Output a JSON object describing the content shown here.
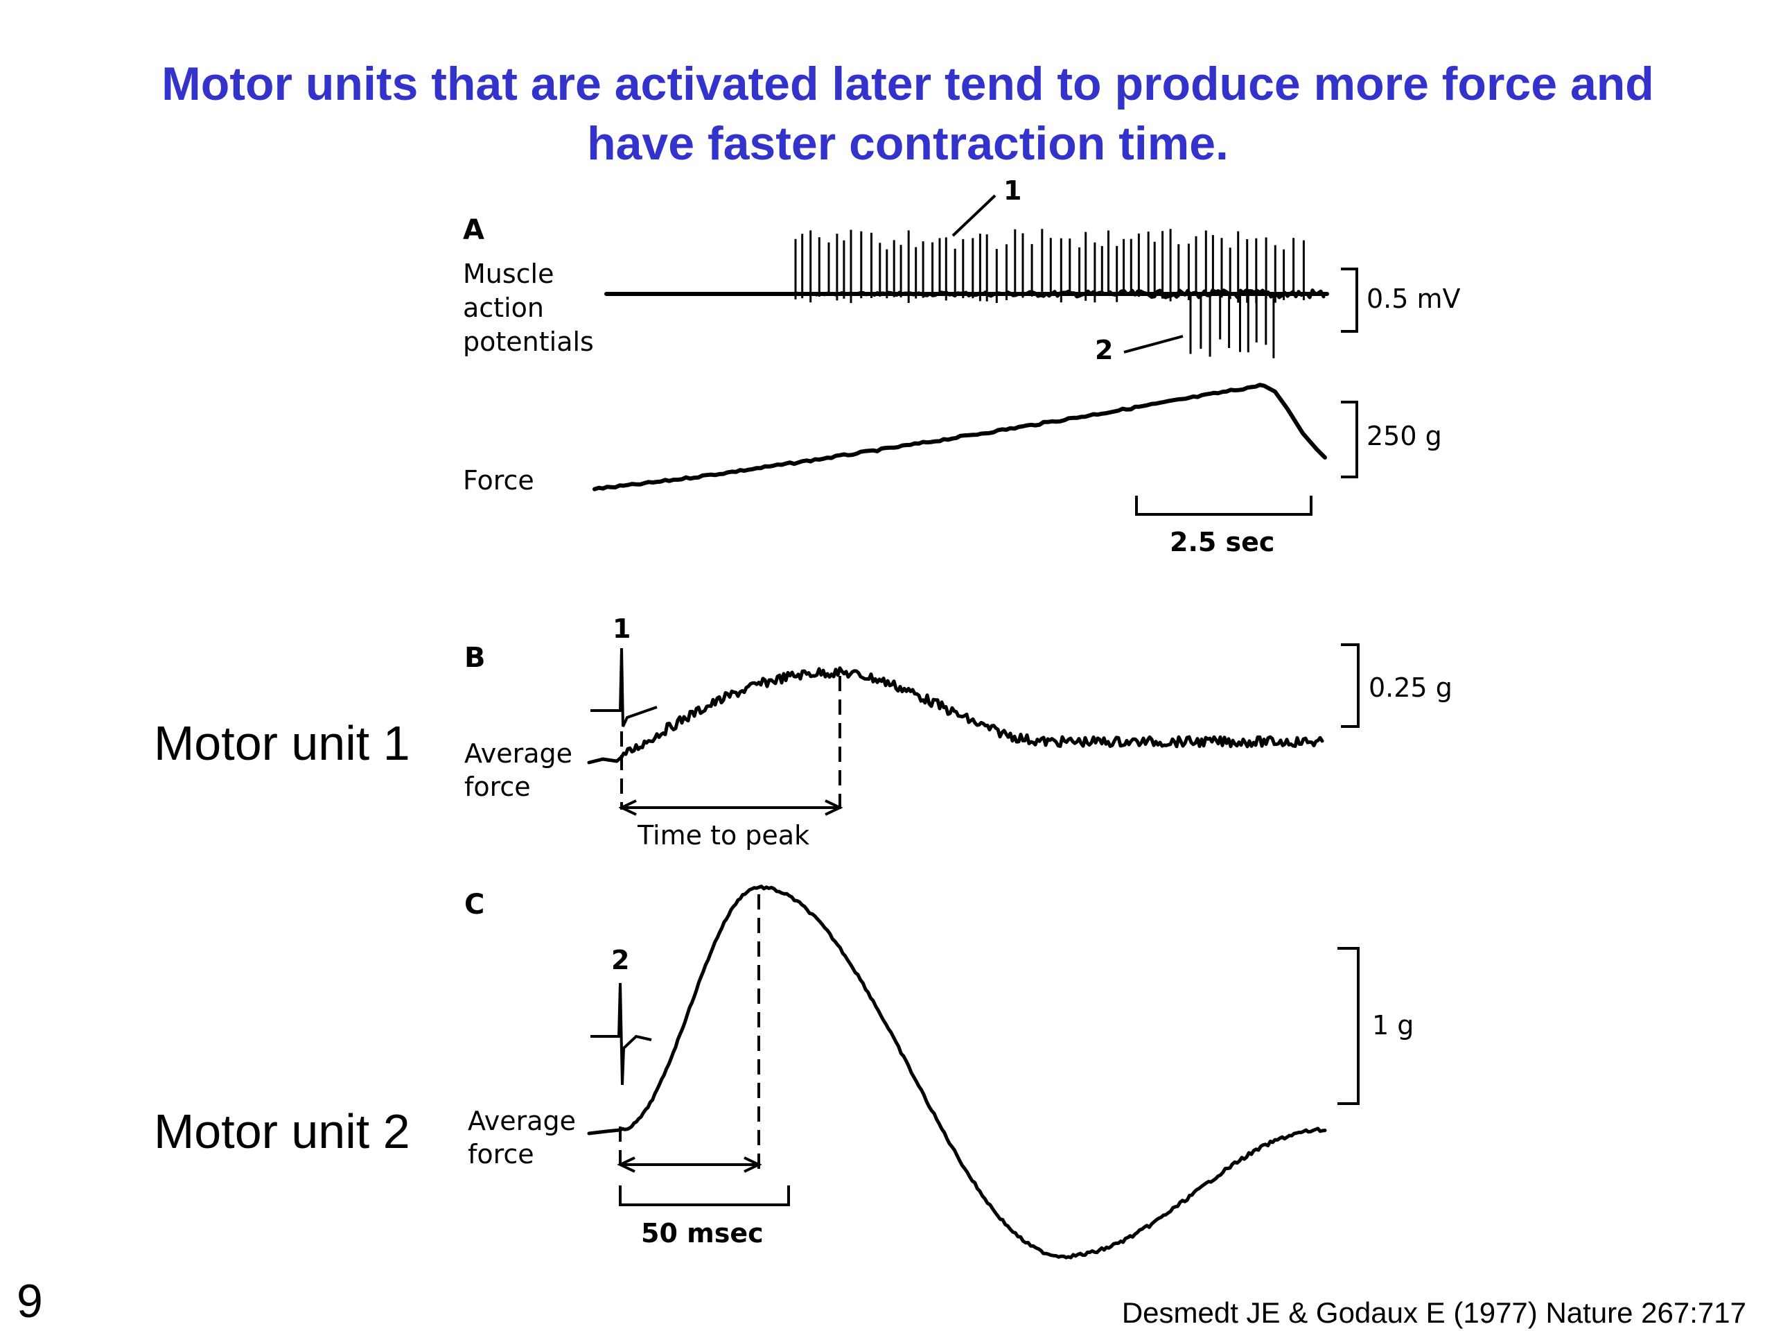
{
  "title": {
    "line1": "Motor units that are activated later tend to produce more force and",
    "line2": "have faster contraction time."
  },
  "side_labels": {
    "motor_unit_1": "Motor unit 1",
    "motor_unit_2": "Motor unit 2"
  },
  "slide_number": "9",
  "citation": "Desmedt JE & Godaux E (1977) Nature 267:717",
  "panel_a": {
    "letter": "A",
    "emg_label_lines": [
      "Muscle",
      "action",
      "potentials"
    ],
    "force_label": "Force",
    "unit1_marker": "1",
    "unit2_marker": "2",
    "emg_scale": "0.5 mV",
    "force_scale": "250 g",
    "time_scale": "2.5 sec"
  },
  "panel_b": {
    "letter": "B",
    "marker": "1",
    "trace_label_lines": [
      "Average",
      "force"
    ],
    "scale": "0.25 g",
    "time_to_peak_label": "Time to peak"
  },
  "panel_c": {
    "letter": "C",
    "marker": "2",
    "trace_label_lines": [
      "Average",
      "force"
    ],
    "scale": "1 g",
    "time_scale": "50 msec"
  }
}
